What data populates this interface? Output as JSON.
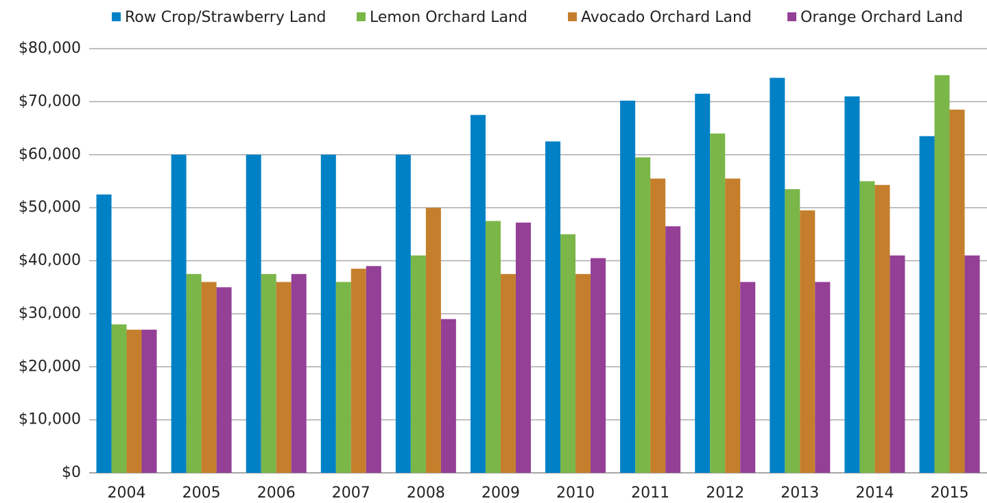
{
  "chart_data": {
    "type": "bar",
    "categories": [
      "2004",
      "2005",
      "2006",
      "2007",
      "2008",
      "2009",
      "2010",
      "2011",
      "2012",
      "2013",
      "2014",
      "2015"
    ],
    "series": [
      {
        "name": "Row Crop/Strawberry Land",
        "color": "#0081c6",
        "values": [
          52500,
          60000,
          60000,
          60000,
          60000,
          67500,
          62500,
          70200,
          71500,
          74500,
          71000,
          63500
        ]
      },
      {
        "name": "Lemon Orchard Land",
        "color": "#7ab648",
        "values": [
          28000,
          37500,
          37500,
          36000,
          41000,
          47500,
          45000,
          59500,
          64000,
          53500,
          55000,
          75000
        ]
      },
      {
        "name": "Avocado Orchard Land",
        "color": "#c57f2c",
        "values": [
          27000,
          36000,
          36000,
          38500,
          50000,
          37500,
          37500,
          55500,
          55500,
          49500,
          54300,
          68500
        ]
      },
      {
        "name": "Orange Orchard Land",
        "color": "#944097",
        "values": [
          27000,
          35000,
          37500,
          39000,
          29000,
          47200,
          40500,
          46500,
          36000,
          36000,
          41000,
          41000
        ]
      }
    ],
    "ylim": [
      0,
      80000
    ],
    "yticks": [
      {
        "value": 0,
        "label": "$0"
      },
      {
        "value": 10000,
        "label": "$10,000"
      },
      {
        "value": 20000,
        "label": "$20,000"
      },
      {
        "value": 30000,
        "label": "$30,000"
      },
      {
        "value": 40000,
        "label": "$40,000"
      },
      {
        "value": 50000,
        "label": "$50,000"
      },
      {
        "value": 60000,
        "label": "$60,000"
      },
      {
        "value": 70000,
        "label": "$70,000"
      },
      {
        "value": 80000,
        "label": "$80,000"
      }
    ],
    "grid": true,
    "legend": "top"
  }
}
